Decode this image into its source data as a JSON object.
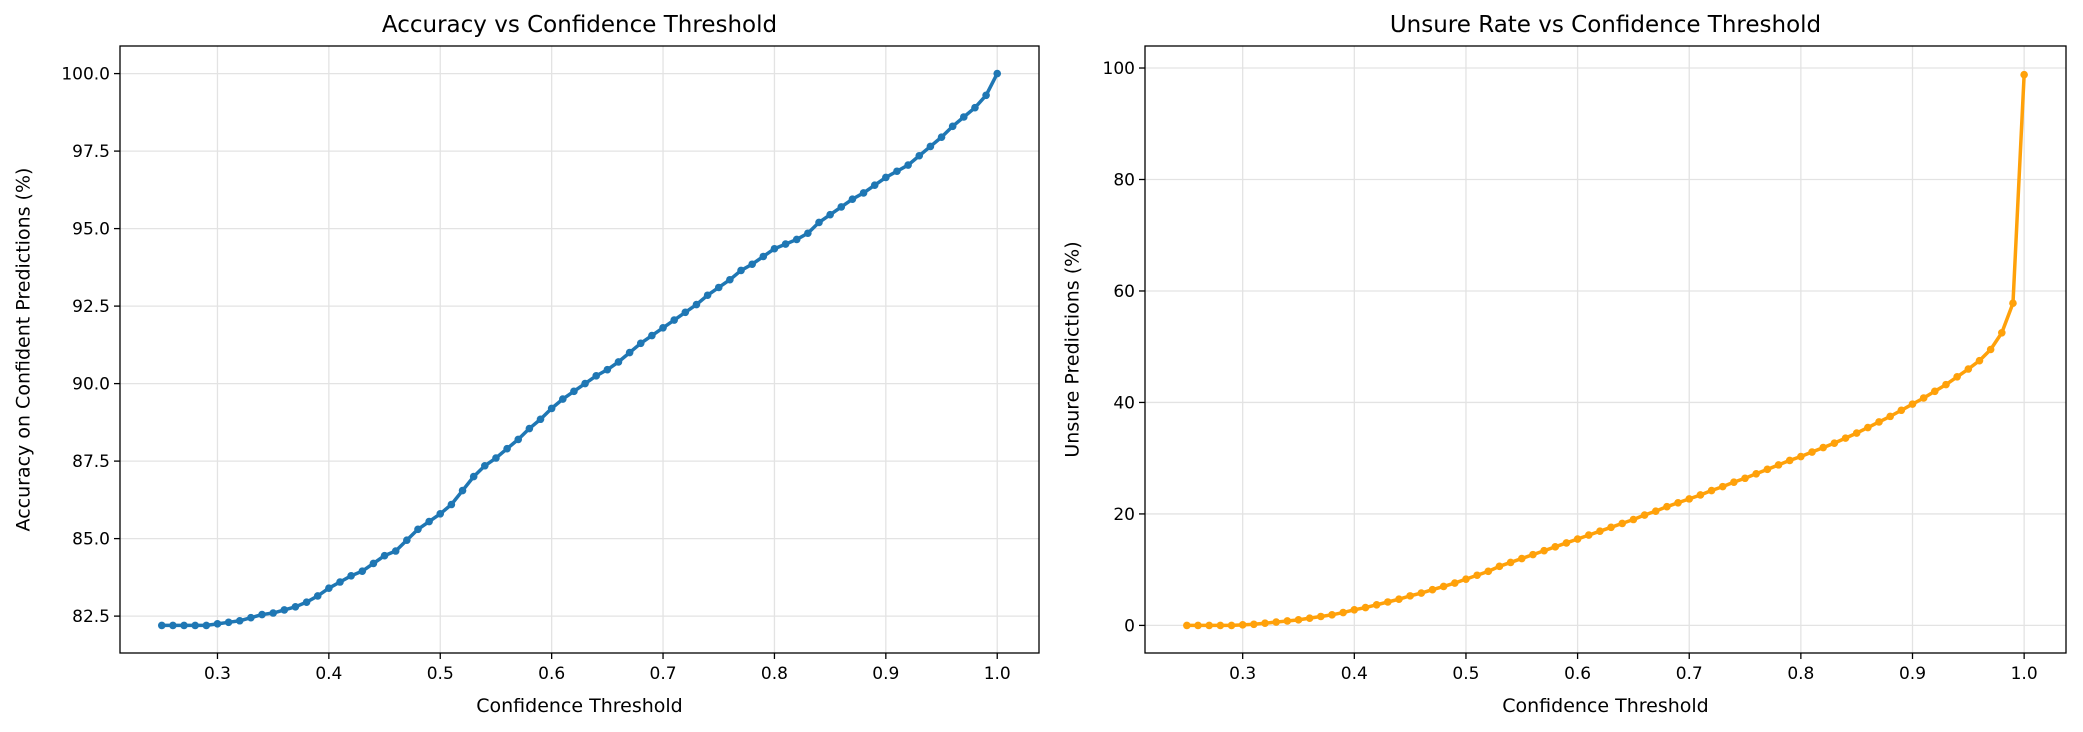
{
  "chart_data": [
    {
      "type": "line",
      "title": "Accuracy vs Confidence Threshold",
      "xlabel": "Confidence Threshold",
      "ylabel": "Accuracy on Confident Predictions (%)",
      "x": [
        0.25,
        0.26,
        0.27,
        0.28,
        0.29,
        0.3,
        0.31,
        0.32,
        0.33,
        0.34,
        0.35,
        0.36,
        0.37,
        0.38,
        0.39,
        0.4,
        0.41,
        0.42,
        0.43,
        0.44,
        0.45,
        0.46,
        0.47,
        0.48,
        0.49,
        0.5,
        0.51,
        0.52,
        0.53,
        0.54,
        0.55,
        0.56,
        0.57,
        0.58,
        0.59,
        0.6,
        0.61,
        0.62,
        0.63,
        0.64,
        0.65,
        0.66,
        0.67,
        0.68,
        0.69,
        0.7,
        0.71,
        0.72,
        0.73,
        0.74,
        0.75,
        0.76,
        0.77,
        0.78,
        0.79,
        0.8,
        0.81,
        0.82,
        0.83,
        0.84,
        0.85,
        0.86,
        0.87,
        0.88,
        0.89,
        0.9,
        0.91,
        0.92,
        0.93,
        0.94,
        0.95,
        0.96,
        0.97,
        0.98,
        0.99,
        1.0
      ],
      "series": [
        {
          "color": "#1f77b4",
          "values": [
            82.2,
            82.2,
            82.2,
            82.2,
            82.2,
            82.25,
            82.3,
            82.35,
            82.45,
            82.55,
            82.6,
            82.7,
            82.8,
            82.95,
            83.15,
            83.4,
            83.6,
            83.8,
            83.95,
            84.2,
            84.45,
            84.6,
            84.95,
            85.3,
            85.55,
            85.8,
            86.1,
            86.55,
            87.0,
            87.35,
            87.6,
            87.9,
            88.2,
            88.55,
            88.85,
            89.2,
            89.5,
            89.75,
            90.0,
            90.25,
            90.45,
            90.7,
            91.0,
            91.3,
            91.55,
            91.8,
            92.05,
            92.3,
            92.55,
            92.85,
            93.1,
            93.35,
            93.65,
            93.85,
            94.1,
            94.35,
            94.5,
            94.65,
            94.85,
            95.2,
            95.45,
            95.7,
            95.95,
            96.15,
            96.4,
            96.65,
            96.85,
            97.05,
            97.35,
            97.65,
            97.95,
            98.3,
            98.6,
            98.9,
            99.3,
            100.0
          ]
        }
      ],
      "xlim": [
        0.2125,
        1.0375
      ],
      "xticks": [
        0.3,
        0.4,
        0.5,
        0.6,
        0.7,
        0.8,
        0.9,
        {
          "value": 1,
          "label": "1.0"
        }
      ],
      "ylim": [
        81.31,
        100.89
      ],
      "yticks": [
        82.5,
        {
          "value": 85,
          "label": "85.0"
        },
        87.5,
        {
          "value": 90,
          "label": "90.0"
        },
        92.5,
        {
          "value": 95,
          "label": "95.0"
        },
        97.5,
        {
          "value": 100,
          "label": "100.0"
        }
      ],
      "grid": true
    },
    {
      "type": "line",
      "title": "Unsure Rate vs Confidence Threshold",
      "xlabel": "Confidence Threshold",
      "ylabel": "Unsure Predictions (%)",
      "x": [
        0.25,
        0.26,
        0.27,
        0.28,
        0.29,
        0.3,
        0.31,
        0.32,
        0.33,
        0.34,
        0.35,
        0.36,
        0.37,
        0.38,
        0.39,
        0.4,
        0.41,
        0.42,
        0.43,
        0.44,
        0.45,
        0.46,
        0.47,
        0.48,
        0.49,
        0.5,
        0.51,
        0.52,
        0.53,
        0.54,
        0.55,
        0.56,
        0.57,
        0.58,
        0.59,
        0.6,
        0.61,
        0.62,
        0.63,
        0.64,
        0.65,
        0.66,
        0.67,
        0.68,
        0.69,
        0.7,
        0.71,
        0.72,
        0.73,
        0.74,
        0.75,
        0.76,
        0.77,
        0.78,
        0.79,
        0.8,
        0.81,
        0.82,
        0.83,
        0.84,
        0.85,
        0.86,
        0.87,
        0.88,
        0.89,
        0.9,
        0.91,
        0.92,
        0.93,
        0.94,
        0.95,
        0.96,
        0.97,
        0.98,
        0.99,
        1.0
      ],
      "series": [
        {
          "color": "#ffa10a",
          "values": [
            0,
            0,
            0,
            0,
            0,
            0.1,
            0.2,
            0.4,
            0.6,
            0.8,
            1.0,
            1.3,
            1.6,
            1.9,
            2.3,
            2.8,
            3.2,
            3.7,
            4.2,
            4.7,
            5.3,
            5.8,
            6.4,
            7.0,
            7.6,
            8.3,
            9.0,
            9.7,
            10.6,
            11.3,
            12.0,
            12.7,
            13.4,
            14.1,
            14.8,
            15.5,
            16.2,
            16.9,
            17.6,
            18.3,
            19.0,
            19.8,
            20.5,
            21.3,
            22.0,
            22.7,
            23.4,
            24.2,
            24.9,
            25.7,
            26.4,
            27.2,
            28.0,
            28.8,
            29.6,
            30.3,
            31.1,
            31.9,
            32.7,
            33.6,
            34.5,
            35.5,
            36.5,
            37.5,
            38.6,
            39.7,
            40.8,
            42.0,
            43.2,
            44.6,
            46.0,
            47.5,
            49.5,
            52.5,
            57.8,
            98.8
          ]
        }
      ],
      "xlim": [
        0.2125,
        1.0375
      ],
      "xticks": [
        0.3,
        0.4,
        0.5,
        0.6,
        0.7,
        0.8,
        0.9,
        {
          "value": 1,
          "label": "1.0"
        }
      ],
      "ylim": [
        -4.95,
        103.95
      ],
      "yticks": [
        0,
        20,
        40,
        60,
        80,
        100
      ],
      "grid": true
    }
  ]
}
